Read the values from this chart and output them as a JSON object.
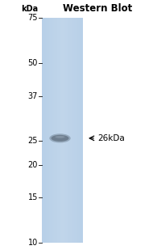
{
  "title": "Western Blot",
  "title_fontsize": 8.5,
  "title_fontweight": "bold",
  "lane_color": "#b8d0e8",
  "lane_color_light": "#cce0f0",
  "background_color": "#ffffff",
  "band_color": "#6a7a8a",
  "band_shadow_color": "#3a4a5a",
  "band_highlight_color": "#9aaaba",
  "kdal_label": "kDa",
  "markers": [
    75,
    50,
    37,
    25,
    20,
    15,
    10
  ],
  "marker_fontsize": 7.0,
  "arrow_label": "26kDa",
  "arrow_fontsize": 7.5,
  "fig_width": 1.9,
  "fig_height": 3.09,
  "dpi": 100
}
